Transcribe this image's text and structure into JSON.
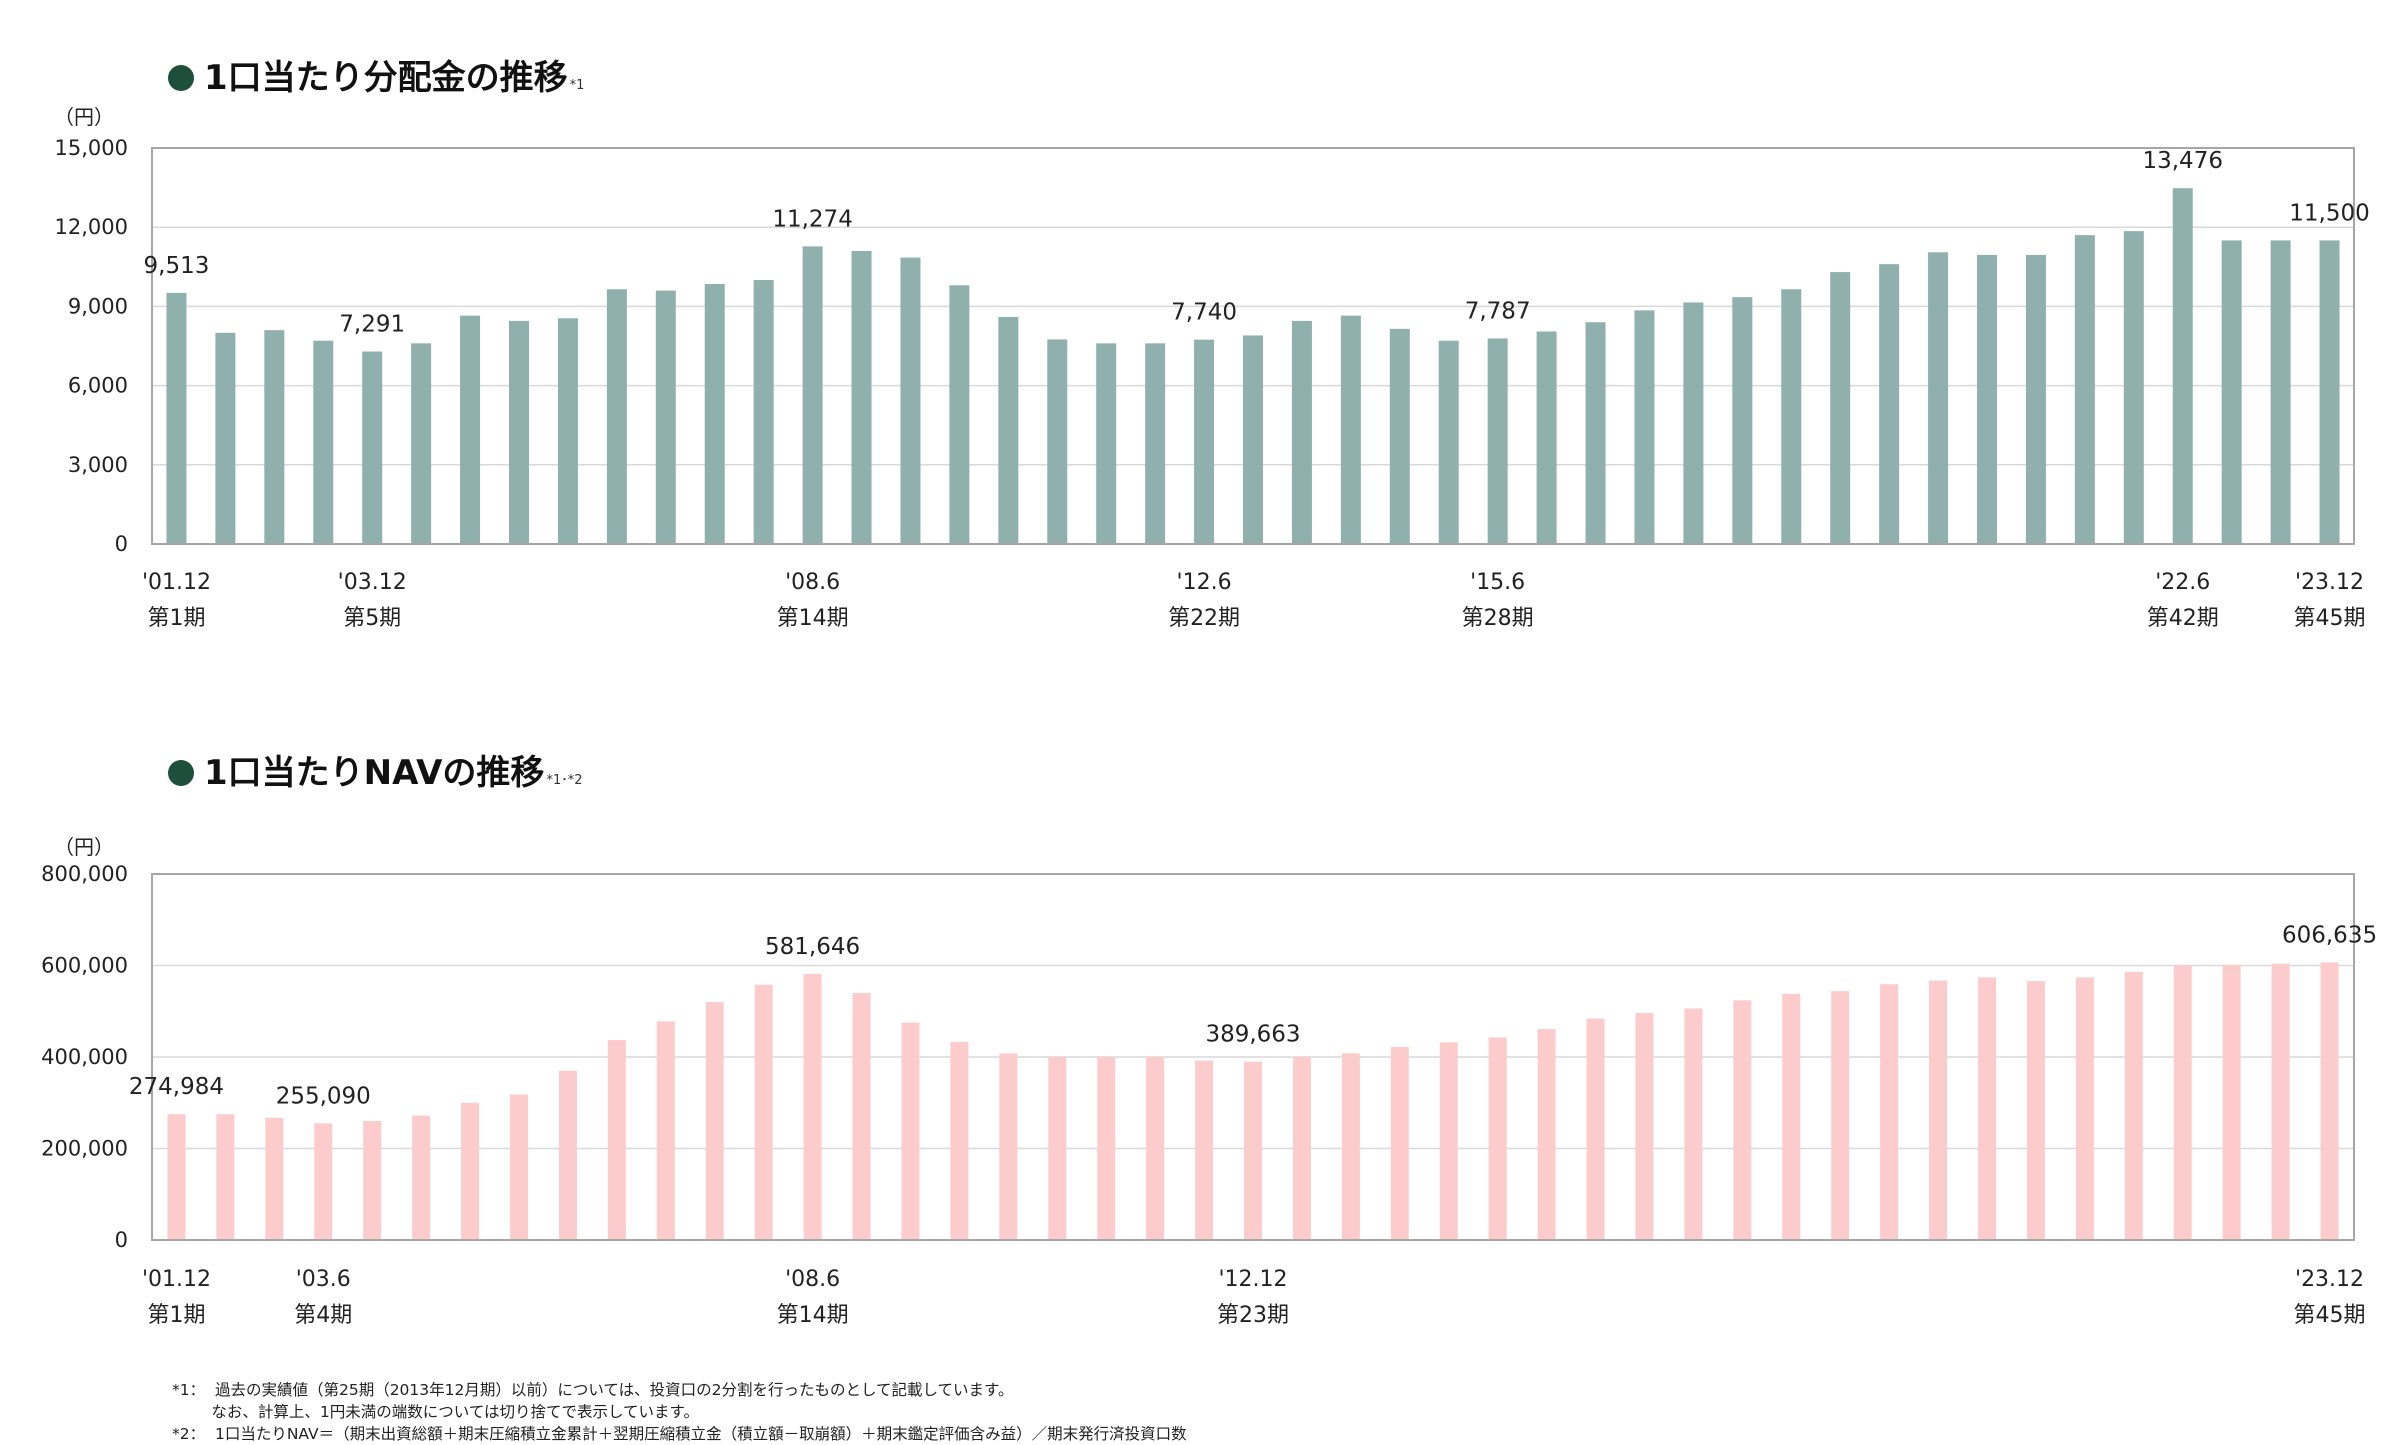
{
  "charts_meta": [
    {
      "title": "1口当たり分配金の推移",
      "title_note": "*1"
    },
    {
      "title": "1口当たりNAVの推移",
      "title_note": "*1･*2"
    }
  ],
  "footnotes": [
    "*1：  過去の実績値（第25期（2013年12月期）以前）については、投資口の2分割を行ったものとして記載しています。",
    "        なお、計算上、1円未満の端数については切り捨てで表示しています。",
    "*2：  1口当たりNAV＝（期末出資総額＋期末圧縮積立金累計＋翌期圧縮積立金（積立額－取崩額）＋期末鑑定評価含み益）／期末発行済投資口数"
  ],
  "chart_data": [
    {
      "type": "bar",
      "title": "1口当たり分配金の推移",
      "ylabel": "（円）",
      "ylim": [
        0,
        15000
      ],
      "yticks": [
        0,
        3000,
        6000,
        9000,
        12000,
        15000
      ],
      "ytick_labels": [
        "0",
        "3,000",
        "6,000",
        "9,000",
        "12,000",
        "15,000"
      ],
      "color": "#8fb0ad",
      "grid": true,
      "values": [
        9513,
        8000,
        8100,
        7700,
        7291,
        7600,
        8650,
        8450,
        8550,
        9650,
        9600,
        9850,
        10000,
        11274,
        11100,
        10850,
        9800,
        8600,
        7750,
        7600,
        7600,
        7740,
        7900,
        8450,
        8650,
        8150,
        7700,
        7787,
        8050,
        8400,
        8850,
        9150,
        9350,
        9650,
        10300,
        10600,
        11050,
        10950,
        10950,
        11700,
        11850,
        13476,
        11500,
        11500,
        11500
      ],
      "value_labels": [
        {
          "index": 0,
          "text": "9,513"
        },
        {
          "index": 4,
          "text": "7,291"
        },
        {
          "index": 13,
          "text": "11,274"
        },
        {
          "index": 21,
          "text": "7,740"
        },
        {
          "index": 27,
          "text": "7,787"
        },
        {
          "index": 41,
          "text": "13,476"
        },
        {
          "index": 44,
          "text": "11,500"
        }
      ],
      "x_labels": [
        {
          "index": 0,
          "date": "'01.12",
          "period": "第1期"
        },
        {
          "index": 4,
          "date": "'03.12",
          "period": "第5期"
        },
        {
          "index": 13,
          "date": "'08.6",
          "period": "第14期"
        },
        {
          "index": 21,
          "date": "'12.6",
          "period": "第22期"
        },
        {
          "index": 27,
          "date": "'15.6",
          "period": "第28期"
        },
        {
          "index": 41,
          "date": "'22.6",
          "period": "第42期"
        },
        {
          "index": 44,
          "date": "'23.12",
          "period": "第45期"
        }
      ]
    },
    {
      "type": "bar",
      "title": "1口当たりNAVの推移",
      "ylabel": "（円）",
      "ylim": [
        0,
        800000
      ],
      "yticks": [
        0,
        200000,
        400000,
        600000,
        800000
      ],
      "ytick_labels": [
        "0",
        "200,000",
        "400,000",
        "600,000",
        "800,000"
      ],
      "color": "#fbcccb",
      "grid": true,
      "values": [
        274984,
        275000,
        267000,
        255090,
        260000,
        272000,
        300000,
        318000,
        370000,
        437000,
        478000,
        520000,
        558000,
        581646,
        540000,
        475000,
        433000,
        408000,
        400000,
        400000,
        400000,
        392000,
        389663,
        400000,
        408000,
        422000,
        432000,
        443000,
        461000,
        484000,
        496000,
        506000,
        524000,
        538000,
        544000,
        559000,
        567000,
        574000,
        566000,
        574000,
        586000,
        600000,
        601000,
        604000,
        606635
      ],
      "value_labels": [
        {
          "index": 0,
          "text": "274,984"
        },
        {
          "index": 3,
          "text": "255,090"
        },
        {
          "index": 13,
          "text": "581,646"
        },
        {
          "index": 22,
          "text": "389,663"
        },
        {
          "index": 44,
          "text": "606,635"
        }
      ],
      "x_labels": [
        {
          "index": 0,
          "date": "'01.12",
          "period": "第1期"
        },
        {
          "index": 3,
          "date": "'03.6",
          "period": "第4期"
        },
        {
          "index": 13,
          "date": "'08.6",
          "period": "第14期"
        },
        {
          "index": 22,
          "date": "'12.12",
          "period": "第23期"
        },
        {
          "index": 44,
          "date": "'23.12",
          "period": "第45期"
        }
      ]
    }
  ]
}
